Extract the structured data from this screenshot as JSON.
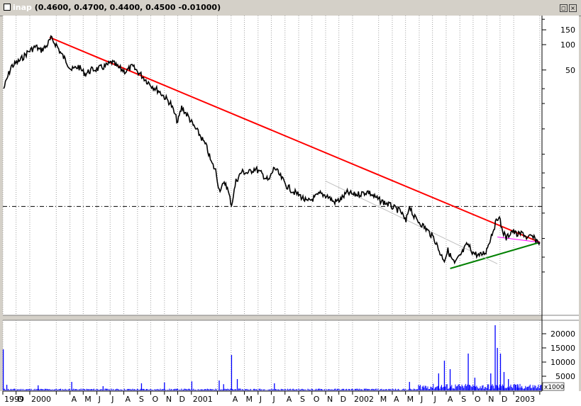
{
  "window": {
    "symbol": "inap",
    "quote": " (0.4600, 0.4700, 0.4400, 0.4500 -0.01000)",
    "buttons": [
      "◻",
      "⨯"
    ]
  },
  "chart_data": [
    {
      "type": "line",
      "series_name": "",
      "yscale": "log",
      "y_ticks": [
        "150",
        "100",
        "50"
      ],
      "y_tick_values": [
        150,
        100,
        50
      ],
      "x_tick_labels": [
        "1999",
        "D",
        "2000",
        "",
        "A",
        "M",
        "J",
        "J",
        "A",
        "S",
        "O",
        "N",
        "D",
        "2001",
        "",
        "A",
        "M",
        "J",
        "J",
        "A",
        "S",
        "O",
        "N",
        "D",
        "2002",
        "M",
        "A",
        "M",
        "J",
        "J",
        "A",
        "S",
        "O",
        "N",
        "D",
        "2003",
        ""
      ],
      "x_tick_dates": [
        "1999-11-01",
        "1999-12-01",
        "2000-01-01",
        "2000-03-01",
        "2000-04-01",
        "2000-05-01",
        "2000-06-01",
        "2000-07-01",
        "2000-08-01",
        "2000-09-01",
        "2000-10-01",
        "2000-11-01",
        "2000-12-01",
        "2001-01-01",
        "2001-03-01",
        "2001-04-01",
        "2001-05-01",
        "2001-06-01",
        "2001-07-01",
        "2001-08-01",
        "2001-09-01",
        "2001-10-01",
        "2001-11-01",
        "2001-12-01",
        "2002-01-01",
        "2002-03-01",
        "2002-04-01",
        "2002-05-01",
        "2002-06-01",
        "2002-07-01",
        "2002-08-01",
        "2002-09-01",
        "2002-10-01",
        "2002-11-01",
        "2002-12-01",
        "2003-01-01",
        "2003-03-01"
      ],
      "price_points": [
        [
          "1999-11-03",
          30
        ],
        [
          "1999-11-20",
          55
        ],
        [
          "1999-12-10",
          65
        ],
        [
          "1999-12-28",
          82
        ],
        [
          "2000-01-15",
          95
        ],
        [
          "2000-01-25",
          85
        ],
        [
          "2000-02-07",
          95
        ],
        [
          "2000-02-18",
          118
        ],
        [
          "2000-03-01",
          100
        ],
        [
          "2000-03-12",
          78
        ],
        [
          "2000-03-25",
          62
        ],
        [
          "2000-04-05",
          50
        ],
        [
          "2000-04-20",
          55
        ],
        [
          "2000-05-05",
          45
        ],
        [
          "2000-05-20",
          50
        ],
        [
          "2000-06-05",
          52
        ],
        [
          "2000-06-20",
          55
        ],
        [
          "2000-07-05",
          62
        ],
        [
          "2000-07-20",
          53
        ],
        [
          "2000-08-05",
          48
        ],
        [
          "2000-08-20",
          55
        ],
        [
          "2000-09-05",
          46
        ],
        [
          "2000-09-20",
          38
        ],
        [
          "2000-10-05",
          32
        ],
        [
          "2000-10-20",
          28
        ],
        [
          "2000-11-01",
          24
        ],
        [
          "2000-11-15",
          20
        ],
        [
          "2000-12-01",
          12
        ],
        [
          "2000-12-10",
          18
        ],
        [
          "2000-12-25",
          14
        ],
        [
          "2001-01-05",
          11
        ],
        [
          "2001-01-20",
          8.5
        ],
        [
          "2001-02-05",
          6
        ],
        [
          "2001-02-15",
          4
        ],
        [
          "2001-02-25",
          3.2
        ],
        [
          "2001-03-05",
          1.9
        ],
        [
          "2001-03-20",
          2.3
        ],
        [
          "2001-04-02",
          1.25
        ],
        [
          "2001-04-12",
          2.4
        ],
        [
          "2001-04-25",
          3.1
        ],
        [
          "2001-05-10",
          3.0
        ],
        [
          "2001-05-25",
          3.4
        ],
        [
          "2001-06-10",
          2.9
        ],
        [
          "2001-06-25",
          2.4
        ],
        [
          "2001-07-08",
          3.5
        ],
        [
          "2001-07-20",
          2.8
        ],
        [
          "2001-08-05",
          2.1
        ],
        [
          "2001-08-20",
          1.8
        ],
        [
          "2001-09-05",
          1.6
        ],
        [
          "2001-09-20",
          1.35
        ],
        [
          "2001-10-05",
          1.5
        ],
        [
          "2001-10-20",
          1.7
        ],
        [
          "2001-11-05",
          1.6
        ],
        [
          "2001-11-20",
          1.35
        ],
        [
          "2001-12-05",
          1.45
        ],
        [
          "2001-12-20",
          1.75
        ],
        [
          "2002-01-05",
          1.65
        ],
        [
          "2002-01-20",
          1.7
        ],
        [
          "2002-02-05",
          1.8
        ],
        [
          "2002-02-20",
          1.55
        ],
        [
          "2002-03-05",
          1.4
        ],
        [
          "2002-03-20",
          1.3
        ],
        [
          "2002-04-05",
          1.15
        ],
        [
          "2002-04-20",
          1.05
        ],
        [
          "2002-05-02",
          0.78
        ],
        [
          "2002-05-10",
          1.25
        ],
        [
          "2002-05-20",
          0.9
        ],
        [
          "2002-06-05",
          0.75
        ],
        [
          "2002-06-20",
          0.62
        ],
        [
          "2002-07-05",
          0.5
        ],
        [
          "2002-07-20",
          0.32
        ],
        [
          "2002-07-28",
          0.28
        ],
        [
          "2002-08-05",
          0.36
        ],
        [
          "2002-08-12",
          0.3
        ],
        [
          "2002-08-20",
          0.25
        ],
        [
          "2002-09-05",
          0.33
        ],
        [
          "2002-09-18",
          0.43
        ],
        [
          "2002-10-01",
          0.34
        ],
        [
          "2002-10-15",
          0.31
        ],
        [
          "2002-10-30",
          0.35
        ],
        [
          "2002-11-08",
          0.48
        ],
        [
          "2002-11-15",
          0.62
        ],
        [
          "2002-11-28",
          0.95
        ],
        [
          "2002-12-05",
          0.65
        ],
        [
          "2002-12-15",
          0.5
        ],
        [
          "2002-12-28",
          0.62
        ],
        [
          "2003-01-10",
          0.55
        ],
        [
          "2003-01-22",
          0.58
        ],
        [
          "2003-02-01",
          0.5
        ],
        [
          "2003-02-10",
          0.53
        ],
        [
          "2003-02-20",
          0.48
        ],
        [
          "2003-03-01",
          0.45
        ]
      ],
      "reference_line_value": 1.2,
      "trendlines": [
        {
          "color": "#ff0000",
          "from": [
            "2000-02-15",
            122
          ],
          "to": [
            "2003-03-01",
            0.45
          ]
        },
        {
          "color": "#008000",
          "from": [
            "2002-08-10",
            0.22
          ],
          "to": [
            "2003-03-01",
            0.45
          ]
        },
        {
          "color": "#ff00ff",
          "from": [
            "2002-11-25",
            0.52
          ],
          "to": [
            "2003-03-01",
            0.45
          ]
        },
        {
          "color": "#c0c0c0",
          "from": [
            "2001-11-01",
            2.4
          ],
          "to": [
            "2002-11-25",
            0.25
          ]
        }
      ]
    },
    {
      "type": "bar",
      "series_name": "",
      "y_ticks": [
        "20000",
        "15000",
        "10000",
        "5000"
      ],
      "y_tick_values": [
        20000,
        15000,
        10000,
        5000
      ],
      "y_unit": "x1000",
      "spikes": [
        [
          "1999-11-02",
          14500
        ],
        [
          "1999-11-10",
          2000
        ],
        [
          "2000-01-20",
          1800
        ],
        [
          "2000-04-05",
          3000
        ],
        [
          "2000-06-15",
          1500
        ],
        [
          "2000-09-10",
          2500
        ],
        [
          "2000-11-01",
          2800
        ],
        [
          "2001-01-02",
          3200
        ],
        [
          "2001-03-05",
          3500
        ],
        [
          "2001-03-15",
          2200
        ],
        [
          "2001-04-02",
          12500
        ],
        [
          "2001-04-15",
          4000
        ],
        [
          "2001-07-08",
          2500
        ],
        [
          "2002-05-10",
          3000
        ],
        [
          "2002-07-15",
          6000
        ],
        [
          "2002-07-28",
          10500
        ],
        [
          "2002-08-10",
          7500
        ],
        [
          "2002-09-20",
          13000
        ],
        [
          "2002-10-05",
          4500
        ],
        [
          "2002-11-10",
          6000
        ],
        [
          "2002-11-20",
          23000
        ],
        [
          "2002-11-25",
          15000
        ],
        [
          "2002-12-02",
          13000
        ],
        [
          "2002-12-10",
          6500
        ],
        [
          "2002-12-20",
          4000
        ],
        [
          "2003-01-10",
          2200
        ]
      ]
    }
  ]
}
